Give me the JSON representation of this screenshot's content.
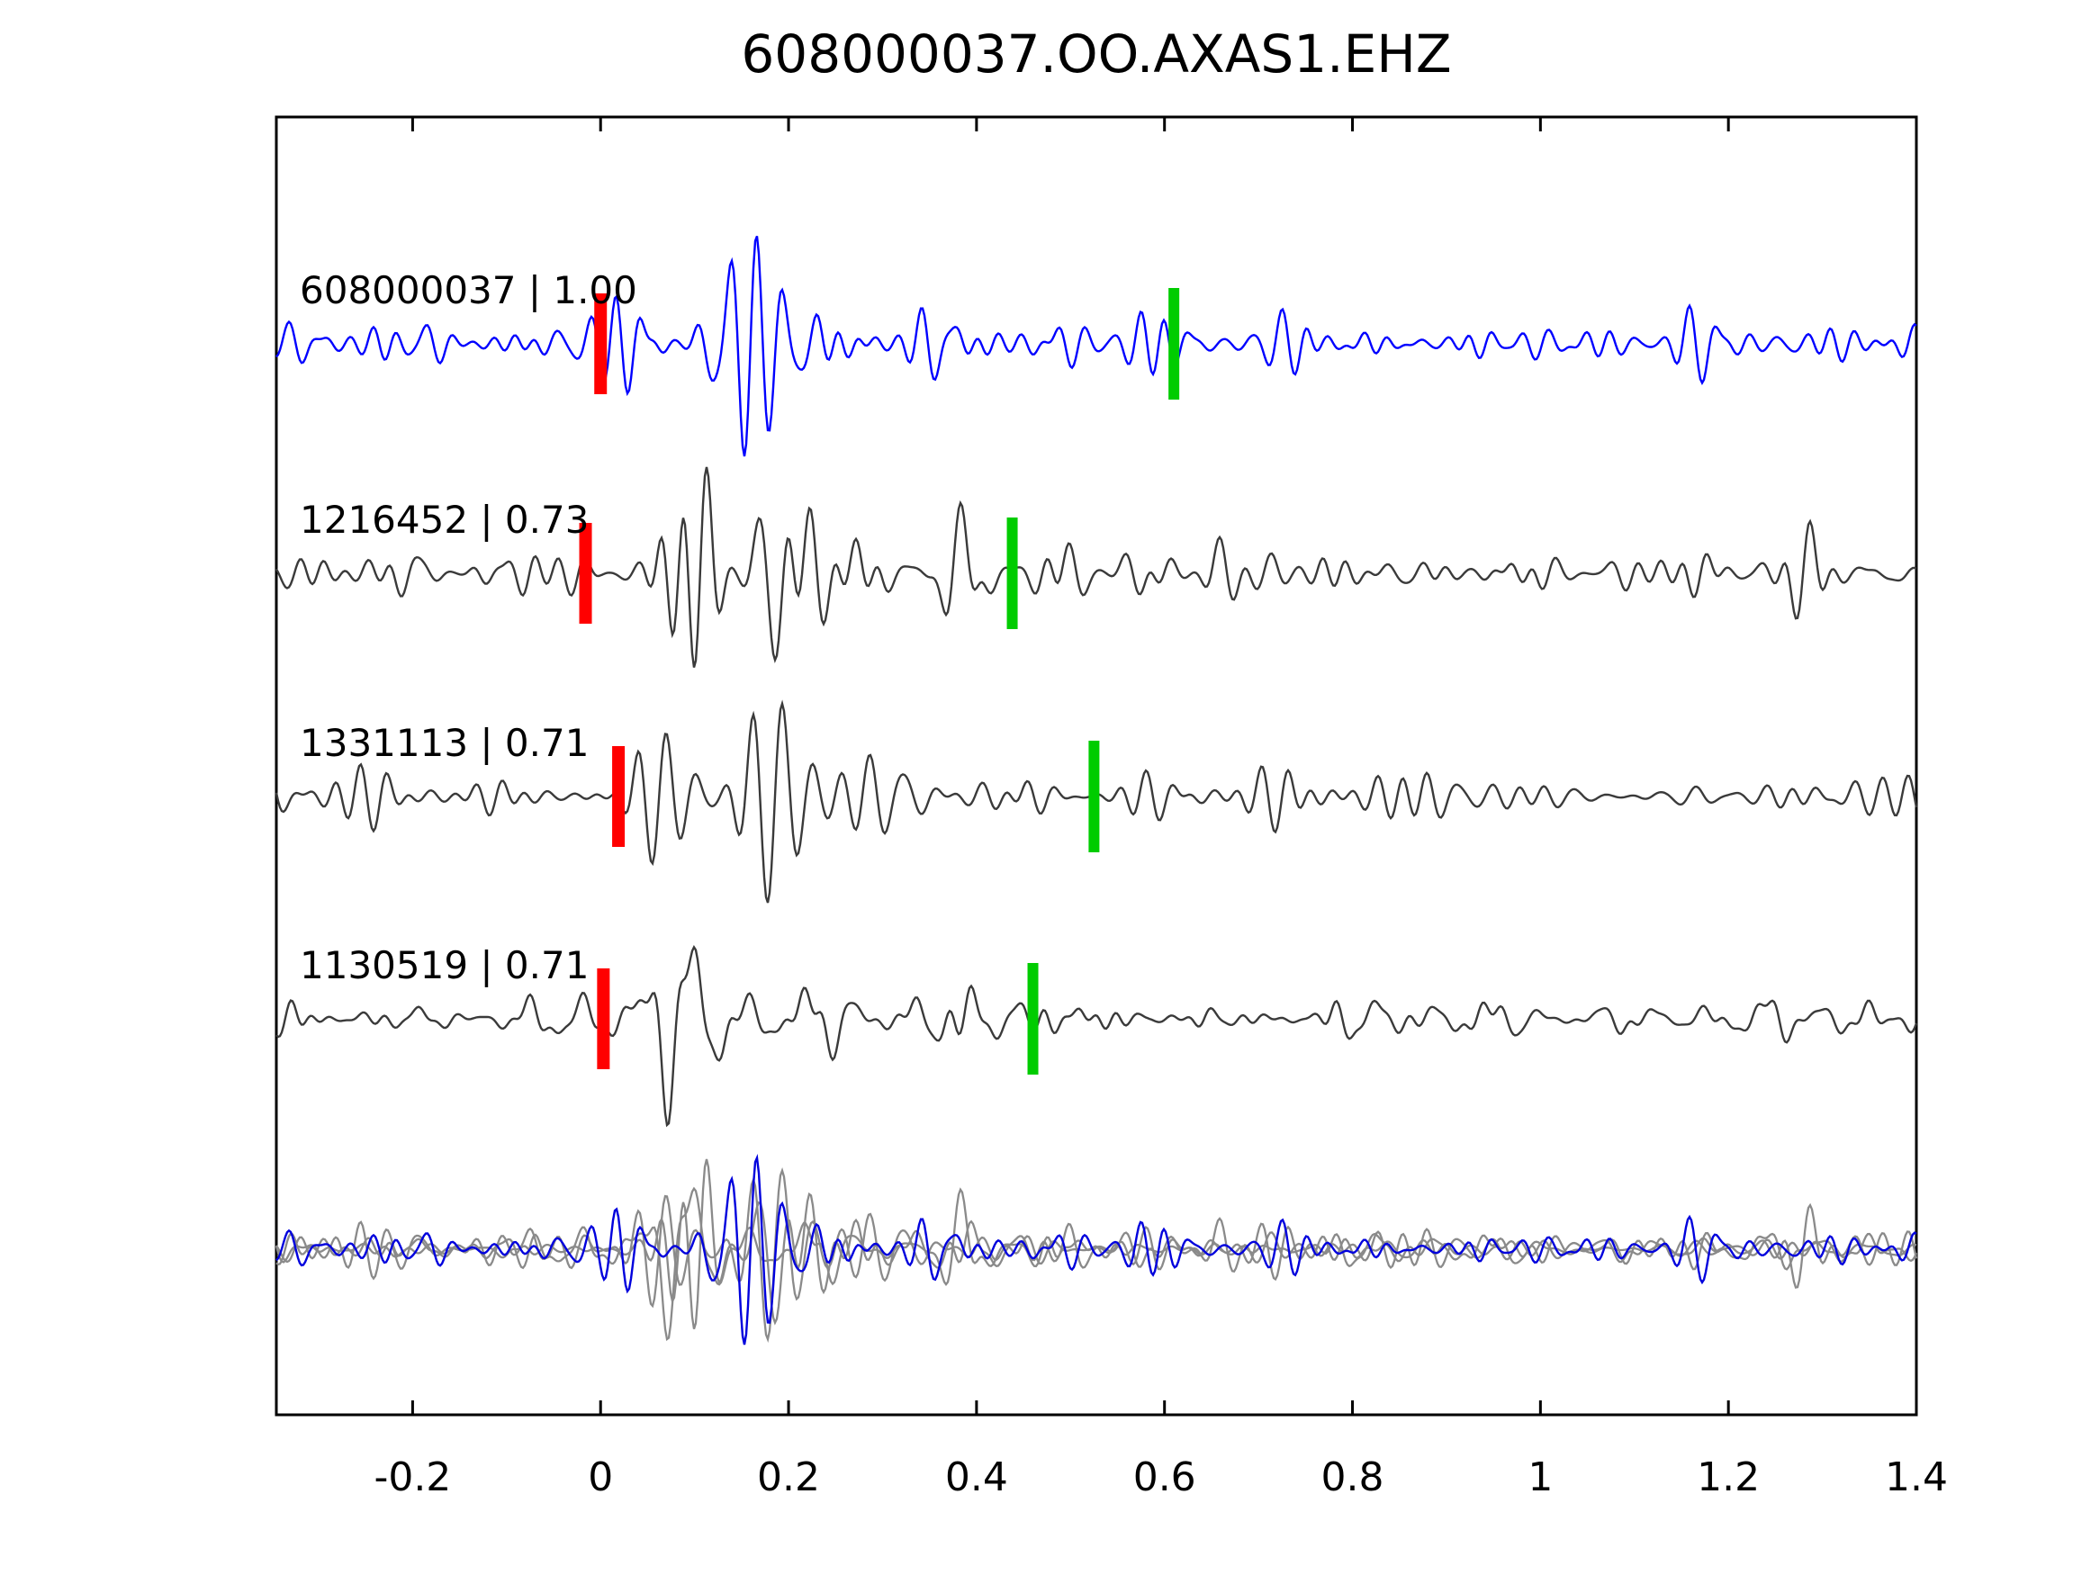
{
  "chart_data": {
    "type": "line",
    "title": "608000037.OO.AXAS1.EHZ",
    "xlabel": "",
    "ylabel": "",
    "xlim": [
      -0.345,
      1.4
    ],
    "x_ticks": [
      -0.2,
      0,
      0.2,
      0.4,
      0.6,
      0.8,
      1,
      1.2,
      1.4
    ],
    "x_tick_labels": [
      "-0.2",
      "0",
      "0.2",
      "0.4",
      "0.6",
      "0.8",
      "1",
      "1.2",
      "1.4"
    ],
    "grid": false,
    "legend": "none",
    "description": "Seismic waveform template matching: four aligned traces with pick markers, plus all traces superimposed in the bottom row",
    "series": [
      {
        "name": "608000037",
        "similarity": "1.00",
        "label": "608000037 | 1.00",
        "color": "#0000ff",
        "pick_red_x": 0.0,
        "pick_green_x": 0.61
      },
      {
        "name": "1216452",
        "similarity": "0.73",
        "label": "1216452 | 0.73",
        "color": "#3a3a3a",
        "pick_red_x": -0.016,
        "pick_green_x": 0.438
      },
      {
        "name": "1331113",
        "similarity": "0.71",
        "label": "1331113 | 0.71",
        "color": "#3a3a3a",
        "pick_red_x": 0.019,
        "pick_green_x": 0.525
      },
      {
        "name": "1130519",
        "similarity": "0.71",
        "label": "1130519 | 0.71",
        "color": "#3a3a3a",
        "pick_red_x": 0.003,
        "pick_green_x": 0.46
      }
    ],
    "overlay_row": {
      "content": "all four traces superimposed",
      "gray_color": "#8a8a8a",
      "blue_color": "#0000dd"
    },
    "marker_colors": {
      "pick_red": "#ff0000",
      "pick_green": "#00cc00"
    }
  }
}
